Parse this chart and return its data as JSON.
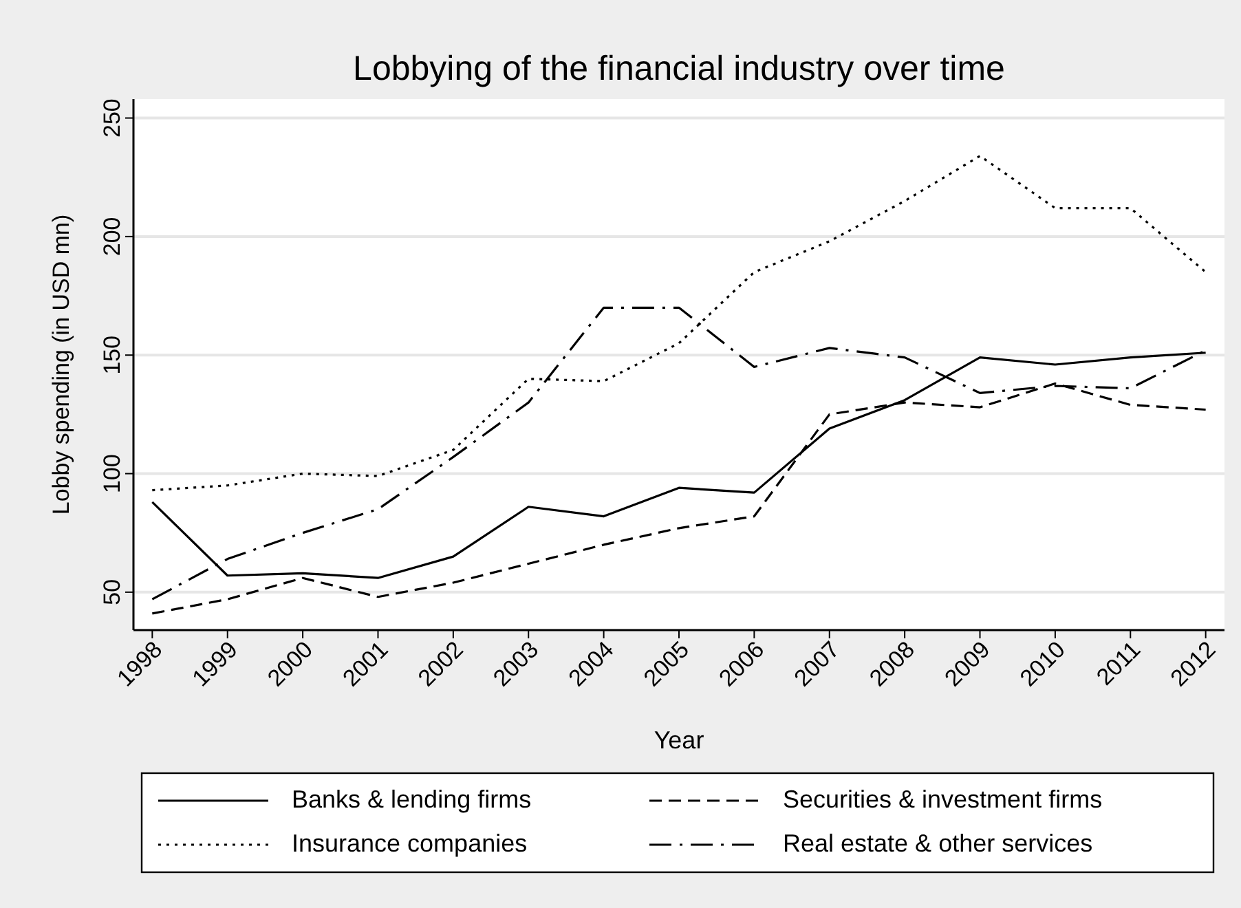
{
  "chart_data": {
    "type": "line",
    "title": "Lobbying of the financial industry over time",
    "xlabel": "Year",
    "ylabel": "Lobby spending (in USD mn)",
    "x": [
      1998,
      1999,
      2000,
      2001,
      2002,
      2003,
      2004,
      2005,
      2006,
      2007,
      2008,
      2009,
      2010,
      2011,
      2012
    ],
    "xlim": [
      1997.75,
      2012.25
    ],
    "xticks": [
      1998,
      1999,
      2000,
      2001,
      2002,
      2003,
      2004,
      2005,
      2006,
      2007,
      2008,
      2009,
      2010,
      2011,
      2012
    ],
    "ylim": [
      34,
      258
    ],
    "yticks": [
      50,
      100,
      150,
      200,
      250
    ],
    "grid": "y",
    "legend": "bottom",
    "marker": "none",
    "series": [
      {
        "name": "Banks & lending firms",
        "color": "#000000",
        "line_style": "solid",
        "values": [
          88,
          57,
          58,
          56,
          65,
          86,
          82,
          94,
          92,
          119,
          131,
          149,
          146,
          149,
          151
        ]
      },
      {
        "name": "Securities & investment firms",
        "color": "#000000",
        "line_style": "dashed",
        "values": [
          41,
          47,
          56,
          48,
          54,
          62,
          70,
          77,
          82,
          125,
          130,
          128,
          138,
          129,
          127
        ]
      },
      {
        "name": "Insurance companies",
        "color": "#000000",
        "line_style": "dotted",
        "values": [
          93,
          95,
          100,
          99,
          110,
          140,
          139,
          155,
          185,
          198,
          215,
          234,
          212,
          212,
          185
        ]
      },
      {
        "name": "Real estate & other services",
        "color": "#000000",
        "line_style": "dashdot",
        "values": [
          47,
          64,
          75,
          85,
          107,
          130,
          170,
          170,
          145,
          153,
          149,
          134,
          137,
          136,
          152
        ]
      }
    ]
  }
}
